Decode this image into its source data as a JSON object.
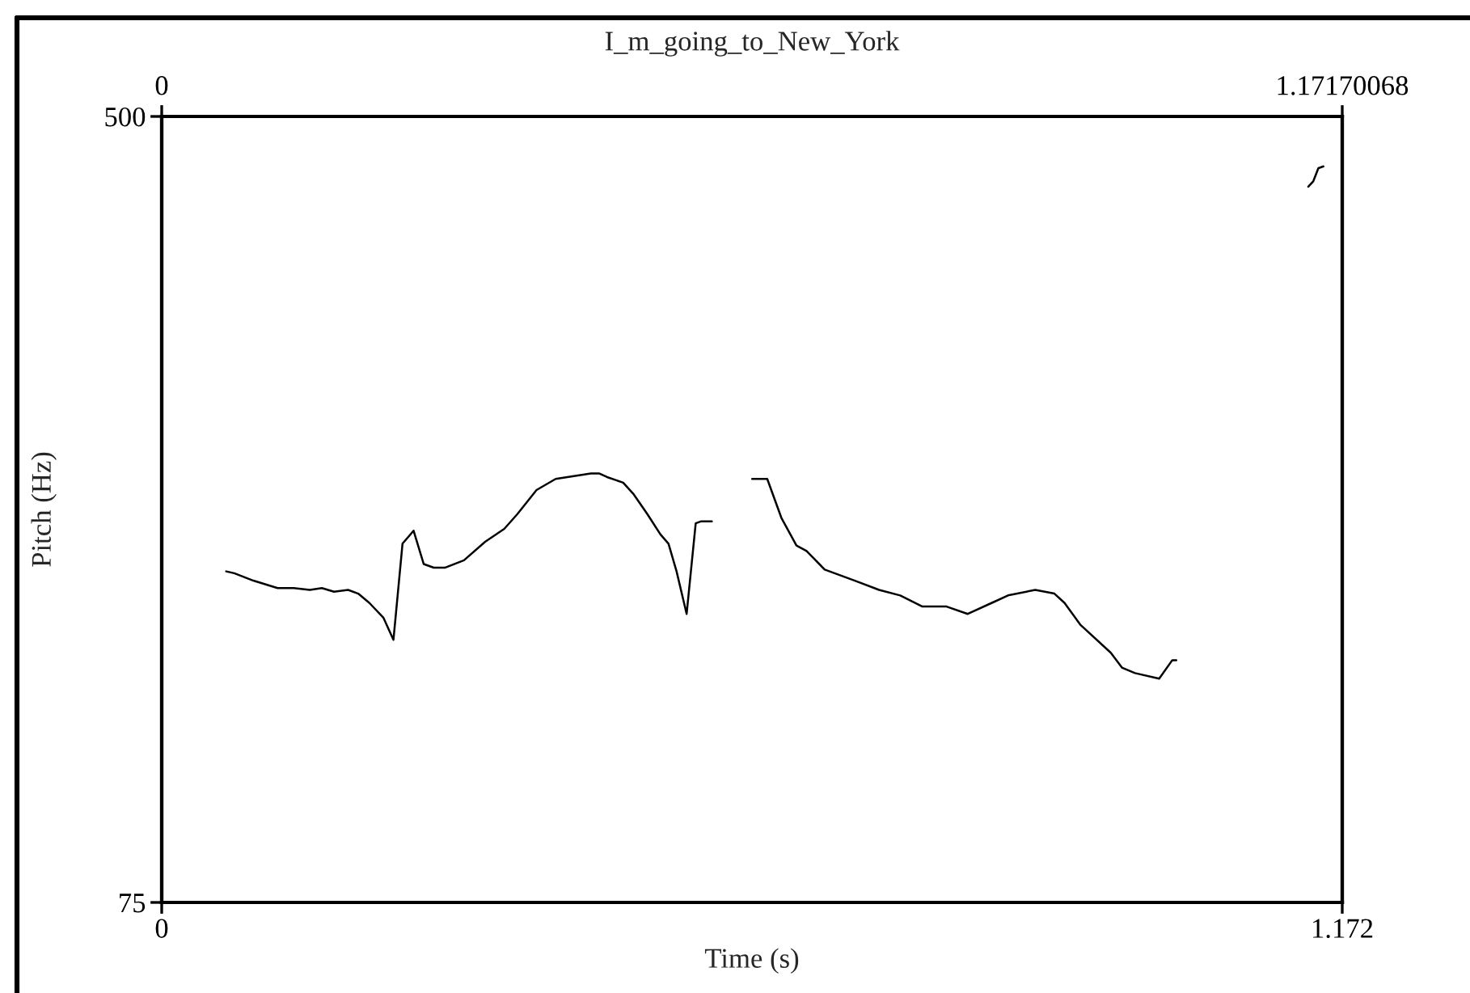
{
  "chart_data": {
    "type": "line",
    "title": "I_m_going_to_New_York",
    "xlabel": "Time (s)",
    "ylabel": "Pitch (Hz)",
    "x": [
      0.064,
      0.072,
      0.091,
      0.115,
      0.131,
      0.147,
      0.159,
      0.171,
      0.185,
      0.195,
      0.206,
      0.22,
      0.23,
      0.239,
      0.25,
      0.26,
      0.27,
      0.281,
      0.3,
      0.321,
      0.34,
      0.353,
      0.372,
      0.391,
      0.426,
      0.434,
      0.442,
      0.458,
      0.468,
      0.482,
      0.495,
      0.503,
      0.511,
      0.521,
      0.53,
      0.535,
      0.546,
      0.566,
      0.586,
      0.601,
      0.615,
      0.63,
      0.64,
      0.658,
      0.688,
      0.712,
      0.733,
      0.755,
      0.779,
      0.8,
      0.824,
      0.84,
      0.867,
      0.886,
      0.896,
      0.912,
      0.942,
      0.953,
      0.966,
      0.99,
      1.003,
      1.007,
      1.07,
      1.138,
      1.143,
      1.148,
      1.153
    ],
    "series": [
      {
        "color": "#000000",
        "values": [
          254,
          253,
          249,
          245,
          245,
          244,
          245,
          243,
          244,
          242,
          237,
          229,
          217,
          269,
          276,
          258,
          256,
          256,
          260,
          270,
          277,
          285,
          298,
          304,
          307,
          307,
          305,
          302,
          296,
          285,
          274,
          269,
          254,
          231,
          280,
          281,
          281,
          null,
          304,
          304,
          283,
          268,
          265,
          255,
          249,
          244,
          241,
          235,
          235,
          231,
          237,
          241,
          244,
          242,
          237,
          225,
          210,
          202,
          199,
          196,
          206,
          206,
          null,
          462,
          465,
          472,
          473
        ]
      }
    ],
    "xlim": [
      0,
      1.17170068
    ],
    "xticks": [
      0,
      {
        "value": 1.17170068,
        "label": "1.172"
      }
    ],
    "x2lim": [
      0,
      1.17170068
    ],
    "x2ticks": [
      0,
      1.17170068
    ],
    "ylim": [
      75,
      500
    ],
    "yticks": [
      75,
      500
    ],
    "marker": "none",
    "line_style": "solid"
  }
}
